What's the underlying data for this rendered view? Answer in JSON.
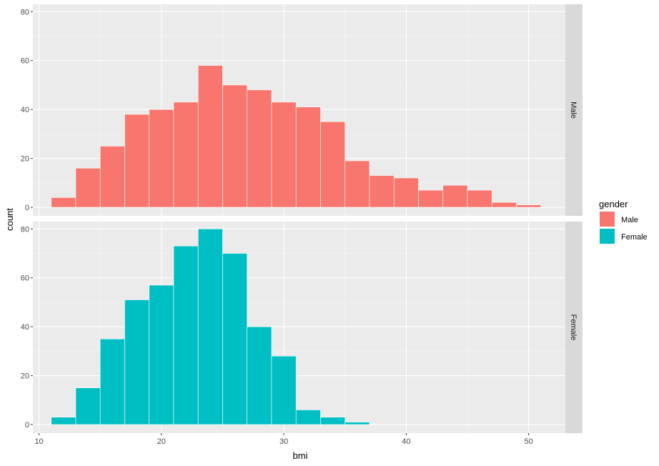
{
  "chart_data": {
    "type": "bar",
    "subtype": "faceted-histogram",
    "xlabel": "bmi",
    "ylabel": "count",
    "x_ticks": [
      10,
      20,
      30,
      40,
      50
    ],
    "y_ticks": [
      0,
      20,
      40,
      60,
      80
    ],
    "xlim": [
      9.5,
      53
    ],
    "ylim": [
      -3.5,
      83
    ],
    "bins": [
      [
        11,
        13
      ],
      [
        13,
        15
      ],
      [
        15,
        17
      ],
      [
        17,
        19
      ],
      [
        19,
        21
      ],
      [
        21,
        23
      ],
      [
        23,
        25
      ],
      [
        25,
        27
      ],
      [
        27,
        29
      ],
      [
        29,
        31
      ],
      [
        31,
        33
      ],
      [
        33,
        35
      ],
      [
        35,
        37
      ],
      [
        37,
        39
      ],
      [
        39,
        41
      ],
      [
        41,
        43
      ],
      [
        43,
        45
      ],
      [
        45,
        47
      ],
      [
        47,
        49
      ],
      [
        49,
        51
      ]
    ],
    "series": [
      {
        "name": "Male",
        "color": "#F8766D",
        "values": [
          4,
          16,
          25,
          38,
          40,
          43,
          58,
          50,
          48,
          43,
          41,
          35,
          19,
          13,
          12,
          7,
          9,
          7,
          2,
          1
        ]
      },
      {
        "name": "Female",
        "color": "#00BFC4",
        "values": [
          3,
          15,
          35,
          51,
          57,
          73,
          80,
          70,
          40,
          28,
          6,
          3,
          1,
          0,
          0,
          0,
          0,
          0,
          0,
          0
        ]
      }
    ],
    "legend": {
      "title": "gender",
      "position": "right",
      "entries": [
        "Male",
        "Female"
      ]
    },
    "facets": [
      "Male",
      "Female"
    ],
    "grid": true
  }
}
